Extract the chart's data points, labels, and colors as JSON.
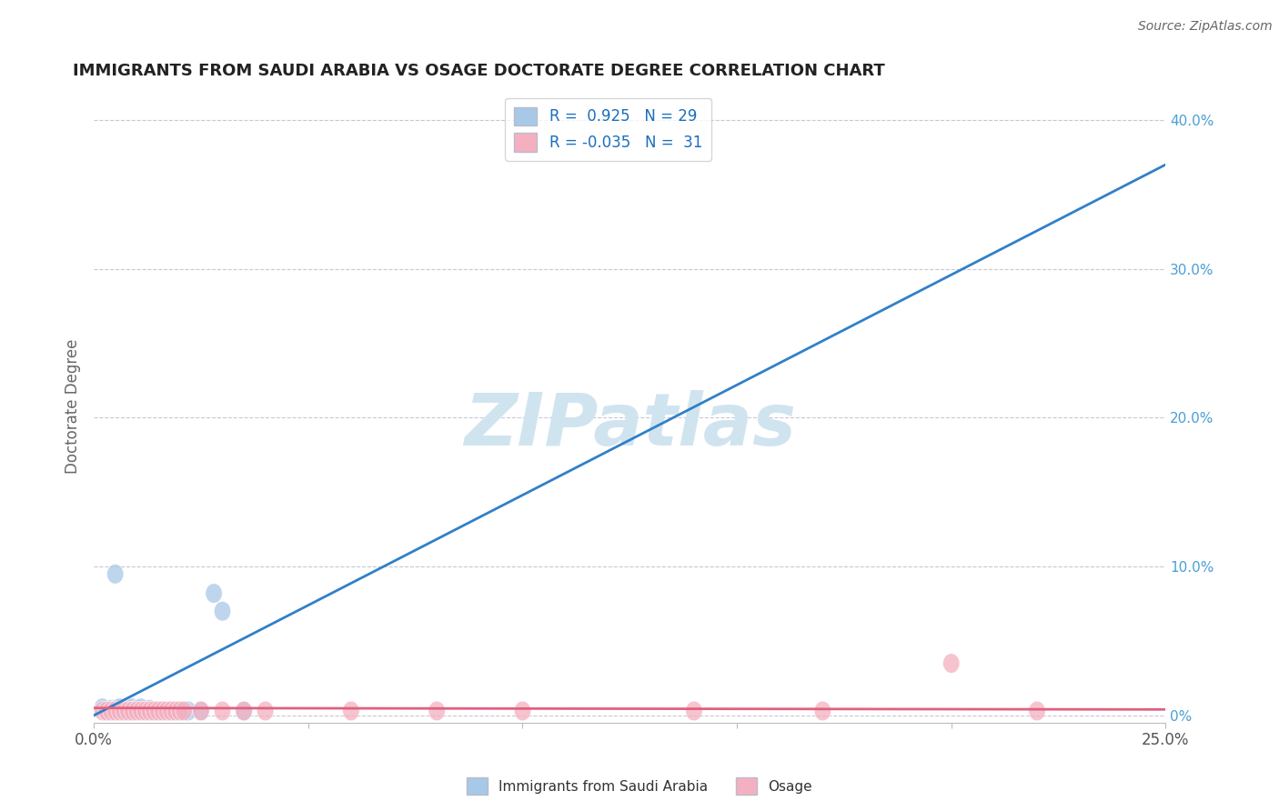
{
  "title": "IMMIGRANTS FROM SAUDI ARABIA VS OSAGE DOCTORATE DEGREE CORRELATION CHART",
  "source": "Source: ZipAtlas.com",
  "ylabel": "Doctorate Degree",
  "right_ytick_vals": [
    0.0,
    0.1,
    0.2,
    0.3,
    0.4
  ],
  "right_ytick_labels": [
    "0%",
    "10.0%",
    "20.0%",
    "30.0%",
    "40.0%"
  ],
  "xlim": [
    0.0,
    0.25
  ],
  "ylim": [
    -0.005,
    0.42
  ],
  "blue_R": 0.925,
  "blue_N": 29,
  "pink_R": -0.035,
  "pink_N": 31,
  "blue_color": "#a8c8e8",
  "pink_color": "#f4b0c0",
  "blue_line_color": "#3080c8",
  "pink_line_color": "#e06080",
  "watermark": "ZIPatlas",
  "watermark_color": "#d0e4f0",
  "legend_label_blue": "Immigrants from Saudi Arabia",
  "legend_label_pink": "Osage",
  "blue_scatter_x": [
    0.002,
    0.003,
    0.004,
    0.005,
    0.005,
    0.006,
    0.006,
    0.007,
    0.007,
    0.008,
    0.008,
    0.009,
    0.009,
    0.01,
    0.01,
    0.011,
    0.012,
    0.013,
    0.014,
    0.015,
    0.016,
    0.018,
    0.02,
    0.022,
    0.025,
    0.028,
    0.03,
    0.035,
    0.005
  ],
  "blue_scatter_y": [
    0.005,
    0.003,
    0.004,
    0.003,
    0.004,
    0.003,
    0.005,
    0.003,
    0.004,
    0.003,
    0.004,
    0.003,
    0.005,
    0.004,
    0.003,
    0.005,
    0.003,
    0.004,
    0.003,
    0.003,
    0.003,
    0.003,
    0.003,
    0.003,
    0.003,
    0.082,
    0.07,
    0.003,
    0.095
  ],
  "pink_scatter_x": [
    0.002,
    0.003,
    0.004,
    0.005,
    0.006,
    0.007,
    0.008,
    0.009,
    0.01,
    0.011,
    0.012,
    0.013,
    0.014,
    0.015,
    0.016,
    0.017,
    0.018,
    0.019,
    0.02,
    0.021,
    0.025,
    0.03,
    0.035,
    0.04,
    0.06,
    0.08,
    0.1,
    0.14,
    0.17,
    0.2,
    0.22
  ],
  "pink_scatter_y": [
    0.003,
    0.003,
    0.003,
    0.003,
    0.003,
    0.003,
    0.003,
    0.003,
    0.003,
    0.003,
    0.003,
    0.003,
    0.003,
    0.003,
    0.003,
    0.003,
    0.003,
    0.003,
    0.003,
    0.003,
    0.003,
    0.003,
    0.003,
    0.003,
    0.003,
    0.003,
    0.003,
    0.003,
    0.003,
    0.035,
    0.003
  ],
  "blue_line_x0": 0.0,
  "blue_line_y0": 0.0,
  "blue_line_x1": 0.25,
  "blue_line_y1": 0.37,
  "pink_line_x0": 0.0,
  "pink_line_y0": 0.005,
  "pink_line_x1": 0.25,
  "pink_line_y1": 0.004,
  "xtick_positions": [
    0.0,
    0.05,
    0.1,
    0.15,
    0.2,
    0.25
  ],
  "xtick_labels_show": [
    "0.0%",
    "",
    "",
    "",
    "",
    "25.0%"
  ]
}
